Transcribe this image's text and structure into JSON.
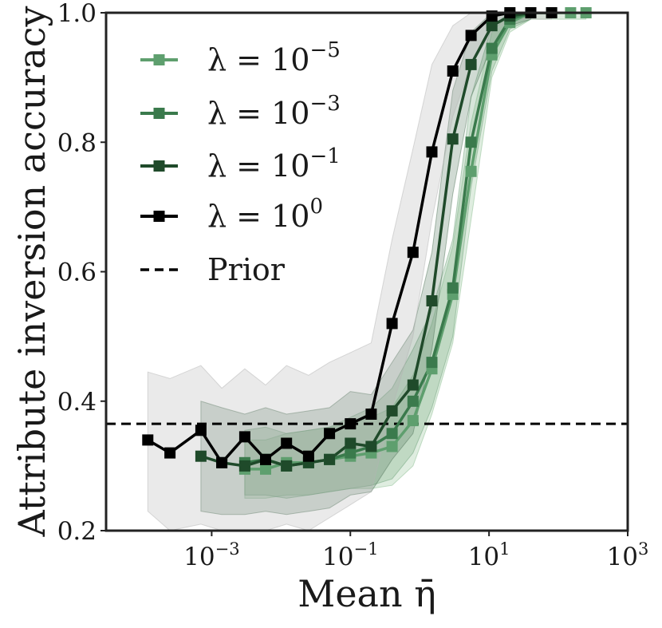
{
  "chart_data": {
    "type": "line",
    "title": "",
    "xlabel": "Mean η̄",
    "ylabel": "Attribute inversion accuracy",
    "xscale": "log",
    "xlim": [
      3e-05,
      1000
    ],
    "ylim": [
      0.2,
      1.0
    ],
    "yticks": [
      0.2,
      0.4,
      0.6,
      0.8,
      1.0
    ],
    "ytick_labels": [
      "0.2",
      "0.4",
      "0.6",
      "0.8",
      "1.0"
    ],
    "xticks": [
      0.001,
      0.1,
      10,
      1000
    ],
    "xtick_labels": [
      {
        "base": "10",
        "exp": "−3"
      },
      {
        "base": "10",
        "exp": "−1"
      },
      {
        "base": "10",
        "exp": "1"
      },
      {
        "base": "10",
        "exp": "3"
      }
    ],
    "grid": false,
    "legend_position": "top-left",
    "prior": {
      "name": "Prior",
      "value": 0.365
    },
    "series": [
      {
        "name": "λ = 10⁻⁵",
        "label_base": "λ = 10",
        "label_exp": "−5",
        "color": "#5e9f6e",
        "band_color": "#8bbf91",
        "x": [
          0.003,
          0.006,
          0.012,
          0.025,
          0.05,
          0.1,
          0.2,
          0.4,
          0.8,
          1.5,
          3,
          5.5,
          11,
          20,
          40,
          80,
          150,
          250
        ],
        "y": [
          0.295,
          0.295,
          0.305,
          0.305,
          0.31,
          0.315,
          0.32,
          0.33,
          0.37,
          0.45,
          0.565,
          0.755,
          0.935,
          0.985,
          1.0,
          1.0,
          1.0,
          1.0
        ],
        "lower": [
          0.25,
          0.25,
          0.255,
          0.255,
          0.26,
          0.265,
          0.265,
          0.27,
          0.3,
          0.38,
          0.49,
          0.68,
          0.9,
          0.97,
          0.99,
          0.99,
          0.99,
          0.99
        ],
        "upper": [
          0.34,
          0.34,
          0.35,
          0.355,
          0.36,
          0.365,
          0.375,
          0.39,
          0.44,
          0.52,
          0.64,
          0.83,
          0.97,
          1.0,
          1.0,
          1.0,
          1.0,
          1.0
        ]
      },
      {
        "name": "λ = 10⁻³",
        "label_base": "λ = 10",
        "label_exp": "−3",
        "color": "#3a7a4c",
        "band_color": "#6fa47b",
        "x": [
          0.003,
          0.006,
          0.012,
          0.025,
          0.05,
          0.1,
          0.2,
          0.4,
          0.8,
          1.5,
          3,
          5.5,
          11,
          20,
          40
        ],
        "y": [
          0.305,
          0.31,
          0.3,
          0.305,
          0.31,
          0.32,
          0.33,
          0.35,
          0.4,
          0.46,
          0.575,
          0.8,
          0.945,
          0.99,
          1.0
        ],
        "lower": [
          0.255,
          0.255,
          0.25,
          0.255,
          0.26,
          0.265,
          0.27,
          0.28,
          0.32,
          0.39,
          0.5,
          0.73,
          0.91,
          0.975,
          0.99
        ],
        "upper": [
          0.355,
          0.36,
          0.35,
          0.355,
          0.36,
          0.375,
          0.39,
          0.42,
          0.48,
          0.54,
          0.65,
          0.87,
          0.98,
          1.0,
          1.0
        ]
      },
      {
        "name": "λ = 10⁻¹",
        "label_base": "λ = 10",
        "label_exp": "−1",
        "color": "#1f4a2a",
        "band_color": "#577a60",
        "x": [
          0.0007,
          0.0014,
          0.003,
          0.006,
          0.012,
          0.025,
          0.05,
          0.1,
          0.2,
          0.4,
          0.8,
          1.5,
          3,
          5.5,
          11,
          20,
          40
        ],
        "y": [
          0.315,
          0.305,
          0.3,
          0.31,
          0.3,
          0.305,
          0.31,
          0.335,
          0.33,
          0.385,
          0.425,
          0.555,
          0.805,
          0.92,
          0.98,
          0.995,
          1.0
        ],
        "lower": [
          0.23,
          0.225,
          0.225,
          0.23,
          0.225,
          0.23,
          0.235,
          0.255,
          0.26,
          0.31,
          0.35,
          0.48,
          0.72,
          0.87,
          0.95,
          0.98,
          0.99
        ],
        "upper": [
          0.4,
          0.39,
          0.38,
          0.39,
          0.38,
          0.385,
          0.39,
          0.415,
          0.41,
          0.46,
          0.51,
          0.63,
          0.88,
          0.97,
          1.0,
          1.0,
          1.0
        ]
      },
      {
        "name": "λ = 10⁰",
        "label_base": "λ = 10",
        "label_exp": "0",
        "color": "#000000",
        "band_color": "#b5b5b5",
        "x": [
          0.00012,
          0.00025,
          0.0007,
          0.0014,
          0.003,
          0.006,
          0.012,
          0.025,
          0.05,
          0.1,
          0.2,
          0.4,
          0.8,
          1.5,
          3,
          5.5,
          11,
          20,
          40,
          80
        ],
        "y": [
          0.34,
          0.32,
          0.355,
          0.305,
          0.345,
          0.31,
          0.335,
          0.315,
          0.35,
          0.365,
          0.38,
          0.52,
          0.63,
          0.785,
          0.91,
          0.965,
          0.995,
          1.0,
          1.0,
          1.0
        ],
        "lower": [
          0.23,
          0.2,
          0.21,
          0.2,
          0.2,
          0.2,
          0.21,
          0.2,
          0.22,
          0.24,
          0.26,
          0.39,
          0.5,
          0.68,
          0.84,
          0.92,
          0.97,
          0.99,
          0.99,
          0.99
        ],
        "upper": [
          0.445,
          0.435,
          0.455,
          0.42,
          0.45,
          0.425,
          0.455,
          0.44,
          0.46,
          0.475,
          0.49,
          0.65,
          0.79,
          0.92,
          0.98,
          1.0,
          1.0,
          1.0,
          1.0,
          1.0
        ]
      }
    ]
  }
}
